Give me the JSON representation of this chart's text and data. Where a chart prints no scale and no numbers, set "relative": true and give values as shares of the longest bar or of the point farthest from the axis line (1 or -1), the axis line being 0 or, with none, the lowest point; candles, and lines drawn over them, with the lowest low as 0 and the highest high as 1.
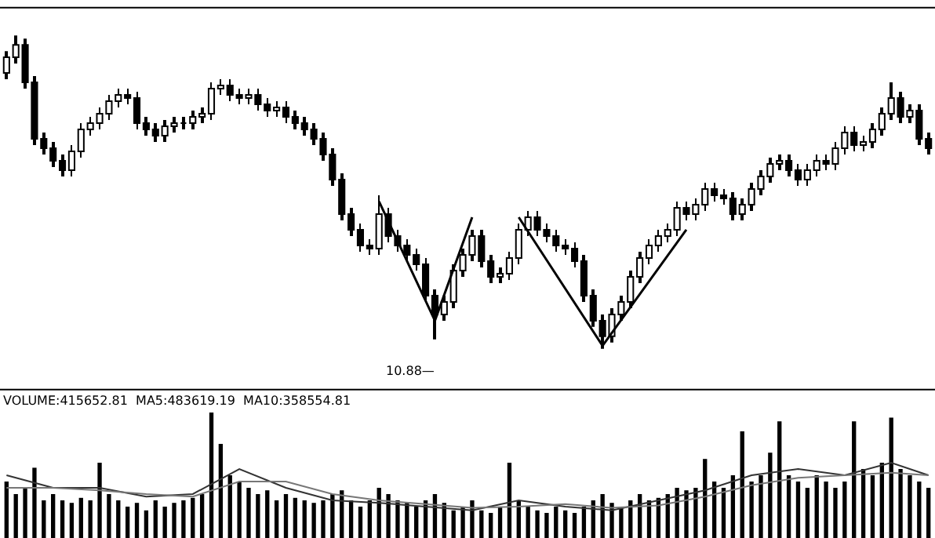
{
  "chart_data": [
    {
      "type": "candlestick",
      "relative": true,
      "tick_labels": false,
      "categories": [
        null,
        null,
        null,
        null,
        null,
        null,
        null,
        null,
        null,
        null,
        null,
        null,
        null,
        null,
        null,
        null,
        null,
        null,
        null,
        null,
        null,
        null,
        null,
        null,
        null,
        null,
        null,
        null,
        null,
        null,
        null,
        null,
        null,
        null,
        null,
        null,
        null,
        null,
        null,
        null,
        null,
        null,
        null,
        null,
        null,
        null,
        null,
        null,
        null,
        null,
        null,
        null,
        null,
        null,
        null,
        null,
        null,
        null,
        null,
        null,
        null,
        null,
        null,
        null,
        null,
        null,
        null,
        null,
        null,
        null,
        null,
        null,
        null,
        null,
        null,
        null,
        null,
        null,
        null,
        null,
        null,
        null,
        null,
        null,
        null,
        null,
        null,
        null,
        null,
        null,
        null,
        null,
        null,
        null,
        null,
        null,
        null,
        null,
        null,
        null
      ],
      "ohlc": [
        [
          0.88,
          0.95,
          0.86,
          0.93
        ],
        [
          0.93,
          1.0,
          0.91,
          0.97
        ],
        [
          0.97,
          0.99,
          0.83,
          0.85
        ],
        [
          0.85,
          0.87,
          0.65,
          0.67
        ],
        [
          0.67,
          0.69,
          0.62,
          0.64
        ],
        [
          0.64,
          0.66,
          0.58,
          0.6
        ],
        [
          0.6,
          0.62,
          0.55,
          0.57
        ],
        [
          0.57,
          0.65,
          0.55,
          0.63
        ],
        [
          0.63,
          0.72,
          0.61,
          0.7
        ],
        [
          0.7,
          0.74,
          0.68,
          0.72
        ],
        [
          0.72,
          0.77,
          0.7,
          0.75
        ],
        [
          0.75,
          0.81,
          0.73,
          0.79
        ],
        [
          0.79,
          0.83,
          0.77,
          0.81
        ],
        [
          0.81,
          0.83,
          0.78,
          0.8
        ],
        [
          0.8,
          0.82,
          0.7,
          0.72
        ],
        [
          0.72,
          0.74,
          0.68,
          0.7
        ],
        [
          0.7,
          0.72,
          0.66,
          0.68
        ],
        [
          0.68,
          0.73,
          0.66,
          0.71
        ],
        [
          0.71,
          0.74,
          0.69,
          0.72
        ],
        [
          0.72,
          0.74,
          0.7,
          0.72
        ],
        [
          0.72,
          0.76,
          0.7,
          0.74
        ],
        [
          0.74,
          0.77,
          0.72,
          0.75
        ],
        [
          0.75,
          0.85,
          0.73,
          0.83
        ],
        [
          0.83,
          0.86,
          0.81,
          0.84
        ],
        [
          0.84,
          0.86,
          0.79,
          0.81
        ],
        [
          0.81,
          0.83,
          0.78,
          0.8
        ],
        [
          0.8,
          0.83,
          0.78,
          0.81
        ],
        [
          0.81,
          0.83,
          0.76,
          0.78
        ],
        [
          0.78,
          0.8,
          0.74,
          0.76
        ],
        [
          0.76,
          0.79,
          0.74,
          0.77
        ],
        [
          0.77,
          0.79,
          0.72,
          0.74
        ],
        [
          0.74,
          0.76,
          0.7,
          0.72
        ],
        [
          0.72,
          0.74,
          0.68,
          0.7
        ],
        [
          0.7,
          0.72,
          0.65,
          0.67
        ],
        [
          0.67,
          0.69,
          0.6,
          0.62
        ],
        [
          0.62,
          0.64,
          0.52,
          0.54
        ],
        [
          0.54,
          0.56,
          0.41,
          0.43
        ],
        [
          0.43,
          0.45,
          0.36,
          0.38
        ],
        [
          0.38,
          0.4,
          0.31,
          0.33
        ],
        [
          0.33,
          0.35,
          0.3,
          0.32
        ],
        [
          0.32,
          0.49,
          0.3,
          0.43
        ],
        [
          0.43,
          0.45,
          0.34,
          0.36
        ],
        [
          0.36,
          0.38,
          0.31,
          0.33
        ],
        [
          0.33,
          0.35,
          0.28,
          0.3
        ],
        [
          0.3,
          0.32,
          0.25,
          0.27
        ],
        [
          0.27,
          0.29,
          0.15,
          0.17
        ],
        [
          0.17,
          0.19,
          0.03,
          0.11
        ],
        [
          0.11,
          0.17,
          0.09,
          0.15
        ],
        [
          0.15,
          0.27,
          0.13,
          0.25
        ],
        [
          0.25,
          0.32,
          0.23,
          0.3
        ],
        [
          0.3,
          0.38,
          0.28,
          0.36
        ],
        [
          0.36,
          0.38,
          0.26,
          0.28
        ],
        [
          0.28,
          0.3,
          0.21,
          0.23
        ],
        [
          0.23,
          0.26,
          0.21,
          0.24
        ],
        [
          0.24,
          0.31,
          0.22,
          0.29
        ],
        [
          0.29,
          0.4,
          0.27,
          0.38
        ],
        [
          0.38,
          0.44,
          0.36,
          0.42
        ],
        [
          0.42,
          0.44,
          0.36,
          0.38
        ],
        [
          0.38,
          0.4,
          0.34,
          0.36
        ],
        [
          0.36,
          0.38,
          0.31,
          0.33
        ],
        [
          0.33,
          0.35,
          0.3,
          0.32
        ],
        [
          0.32,
          0.34,
          0.26,
          0.28
        ],
        [
          0.28,
          0.3,
          0.15,
          0.17
        ],
        [
          0.17,
          0.19,
          0.07,
          0.09
        ],
        [
          0.09,
          0.11,
          0.0,
          0.04
        ],
        [
          0.04,
          0.13,
          0.02,
          0.11
        ],
        [
          0.11,
          0.17,
          0.09,
          0.15
        ],
        [
          0.15,
          0.25,
          0.13,
          0.23
        ],
        [
          0.23,
          0.31,
          0.21,
          0.29
        ],
        [
          0.29,
          0.35,
          0.27,
          0.33
        ],
        [
          0.33,
          0.38,
          0.31,
          0.36
        ],
        [
          0.36,
          0.4,
          0.34,
          0.38
        ],
        [
          0.38,
          0.47,
          0.36,
          0.45
        ],
        [
          0.45,
          0.47,
          0.41,
          0.43
        ],
        [
          0.43,
          0.48,
          0.41,
          0.46
        ],
        [
          0.46,
          0.53,
          0.44,
          0.51
        ],
        [
          0.51,
          0.53,
          0.47,
          0.49
        ],
        [
          0.49,
          0.51,
          0.46,
          0.48
        ],
        [
          0.48,
          0.5,
          0.41,
          0.43
        ],
        [
          0.43,
          0.48,
          0.41,
          0.46
        ],
        [
          0.46,
          0.53,
          0.44,
          0.51
        ],
        [
          0.51,
          0.57,
          0.49,
          0.55
        ],
        [
          0.55,
          0.61,
          0.53,
          0.59
        ],
        [
          0.59,
          0.62,
          0.57,
          0.6
        ],
        [
          0.6,
          0.62,
          0.55,
          0.57
        ],
        [
          0.57,
          0.59,
          0.52,
          0.54
        ],
        [
          0.54,
          0.59,
          0.52,
          0.57
        ],
        [
          0.57,
          0.62,
          0.55,
          0.6
        ],
        [
          0.6,
          0.62,
          0.57,
          0.59
        ],
        [
          0.59,
          0.66,
          0.57,
          0.64
        ],
        [
          0.64,
          0.71,
          0.62,
          0.69
        ],
        [
          0.69,
          0.71,
          0.63,
          0.65
        ],
        [
          0.65,
          0.68,
          0.63,
          0.66
        ],
        [
          0.66,
          0.72,
          0.64,
          0.7
        ],
        [
          0.7,
          0.77,
          0.68,
          0.75
        ],
        [
          0.75,
          0.85,
          0.73,
          0.8
        ],
        [
          0.8,
          0.82,
          0.72,
          0.74
        ],
        [
          0.74,
          0.78,
          0.72,
          0.76
        ],
        [
          0.76,
          0.78,
          0.65,
          0.67
        ],
        [
          0.67,
          0.69,
          0.62,
          0.64
        ]
      ],
      "series": [
        {
          "type": "line",
          "color": "#000000",
          "values": [
            null,
            null,
            null,
            null,
            null,
            null,
            null,
            null,
            null,
            null,
            null,
            null,
            null,
            null,
            null,
            null,
            null,
            null,
            null,
            null,
            null,
            null,
            null,
            null,
            null,
            null,
            null,
            null,
            null,
            null,
            null,
            null,
            null,
            null,
            null,
            null,
            null,
            null,
            null,
            null,
            0.47,
            null,
            null,
            null,
            null,
            null,
            0.09,
            null,
            null,
            null,
            0.42,
            null,
            null,
            null,
            null,
            null,
            null,
            null,
            null,
            null,
            null,
            null,
            null,
            null,
            null,
            null,
            null,
            null,
            null,
            null,
            null,
            null,
            null,
            null,
            null,
            null,
            null,
            null,
            null,
            null,
            null,
            null,
            null,
            null,
            null,
            null,
            null,
            null,
            null,
            null,
            null,
            null,
            null,
            null,
            null,
            null,
            null,
            null,
            null,
            null
          ]
        },
        {
          "type": "line",
          "color": "#000000",
          "values": [
            null,
            null,
            null,
            null,
            null,
            null,
            null,
            null,
            null,
            null,
            null,
            null,
            null,
            null,
            null,
            null,
            null,
            null,
            null,
            null,
            null,
            null,
            null,
            null,
            null,
            null,
            null,
            null,
            null,
            null,
            null,
            null,
            null,
            null,
            null,
            null,
            null,
            null,
            null,
            null,
            null,
            null,
            null,
            null,
            null,
            null,
            null,
            null,
            null,
            null,
            null,
            null,
            null,
            null,
            null,
            0.42,
            null,
            null,
            null,
            null,
            null,
            null,
            null,
            null,
            0.01,
            null,
            null,
            null,
            null,
            null,
            null,
            null,
            null,
            0.38,
            null,
            null,
            null,
            null,
            null,
            null,
            null,
            null,
            null,
            null,
            null,
            null,
            null,
            null,
            null,
            null,
            null,
            null,
            null,
            null,
            null,
            null,
            null,
            null,
            null,
            null
          ]
        }
      ],
      "annotations": [
        "10.88—"
      ]
    },
    {
      "type": "bar",
      "relative": true,
      "tick_labels": false,
      "title": "VOLUME:415652.81  MA5:483619.19  MA10:358554.81",
      "categories": [
        null,
        null,
        null,
        null,
        null,
        null,
        null,
        null,
        null,
        null,
        null,
        null,
        null,
        null,
        null,
        null,
        null,
        null,
        null,
        null,
        null,
        null,
        null,
        null,
        null,
        null,
        null,
        null,
        null,
        null,
        null,
        null,
        null,
        null,
        null,
        null,
        null,
        null,
        null,
        null,
        null,
        null,
        null,
        null,
        null,
        null,
        null,
        null,
        null,
        null,
        null,
        null,
        null,
        null,
        null,
        null,
        null,
        null,
        null,
        null,
        null,
        null,
        null,
        null,
        null,
        null,
        null,
        null,
        null,
        null,
        null,
        null,
        null,
        null,
        null,
        null,
        null,
        null,
        null,
        null,
        null,
        null,
        null,
        null,
        null,
        null,
        null,
        null,
        null,
        null,
        null,
        null,
        null,
        null,
        null,
        null,
        null,
        null,
        null,
        null
      ],
      "series": [
        {
          "color": "#000000",
          "values": [
            0.45,
            0.35,
            0.4,
            0.56,
            0.3,
            0.35,
            0.3,
            0.28,
            0.32,
            0.3,
            0.6,
            0.35,
            0.3,
            0.25,
            0.28,
            0.22,
            0.3,
            0.25,
            0.28,
            0.3,
            0.32,
            0.35,
            1.0,
            0.75,
            0.5,
            0.45,
            0.4,
            0.35,
            0.38,
            0.3,
            0.35,
            0.32,
            0.3,
            0.28,
            0.3,
            0.35,
            0.38,
            0.3,
            0.25,
            0.3,
            0.4,
            0.35,
            0.3,
            0.28,
            0.25,
            0.3,
            0.35,
            0.28,
            0.22,
            0.25,
            0.3,
            0.22,
            0.2,
            0.25,
            0.6,
            0.3,
            0.25,
            0.22,
            0.2,
            0.25,
            0.22,
            0.2,
            0.25,
            0.3,
            0.35,
            0.28,
            0.25,
            0.3,
            0.35,
            0.3,
            0.32,
            0.35,
            0.4,
            0.38,
            0.4,
            0.63,
            0.45,
            0.4,
            0.5,
            0.85,
            0.45,
            0.5,
            0.68,
            0.93,
            0.5,
            0.45,
            0.4,
            0.5,
            0.45,
            0.4,
            0.45,
            0.93,
            0.55,
            0.5,
            0.6,
            0.96,
            0.55,
            0.5,
            0.45,
            0.4
          ]
        },
        {
          "type": "line",
          "color": "#333333",
          "values": [
            0.5,
            null,
            null,
            null,
            null,
            0.4,
            null,
            null,
            null,
            null,
            0.4,
            null,
            null,
            null,
            null,
            0.33,
            null,
            null,
            null,
            null,
            0.35,
            null,
            null,
            null,
            null,
            0.55,
            null,
            null,
            null,
            null,
            0.4,
            null,
            null,
            null,
            null,
            0.3,
            null,
            null,
            null,
            null,
            0.28,
            null,
            null,
            null,
            null,
            0.25,
            null,
            null,
            null,
            null,
            0.22,
            null,
            null,
            null,
            null,
            0.3,
            null,
            null,
            null,
            null,
            0.25,
            null,
            null,
            null,
            null,
            0.22,
            null,
            null,
            null,
            null,
            0.3,
            null,
            null,
            null,
            null,
            0.38,
            null,
            null,
            null,
            null,
            0.5,
            null,
            null,
            null,
            null,
            0.55,
            null,
            null,
            null,
            null,
            0.5,
            null,
            null,
            null,
            null,
            0.6,
            null,
            null,
            null,
            0.5
          ]
        },
        {
          "type": "line",
          "color": "#777777",
          "values": [
            0.4,
            null,
            null,
            null,
            null,
            0.4,
            null,
            null,
            null,
            null,
            0.38,
            null,
            null,
            null,
            null,
            0.35,
            null,
            null,
            null,
            null,
            0.33,
            null,
            null,
            null,
            null,
            0.45,
            null,
            null,
            null,
            null,
            0.45,
            null,
            null,
            null,
            null,
            0.35,
            null,
            null,
            null,
            null,
            0.3,
            null,
            null,
            null,
            null,
            0.27,
            null,
            null,
            null,
            null,
            0.24,
            null,
            null,
            null,
            null,
            0.25,
            null,
            null,
            null,
            null,
            0.27,
            null,
            null,
            null,
            null,
            0.24,
            null,
            null,
            null,
            null,
            0.26,
            null,
            null,
            null,
            null,
            0.33,
            null,
            null,
            null,
            null,
            0.42,
            null,
            null,
            null,
            null,
            0.48,
            null,
            null,
            null,
            null,
            0.5,
            null,
            null,
            null,
            null,
            0.52,
            null,
            null,
            null,
            0.5
          ]
        }
      ]
    }
  ]
}
